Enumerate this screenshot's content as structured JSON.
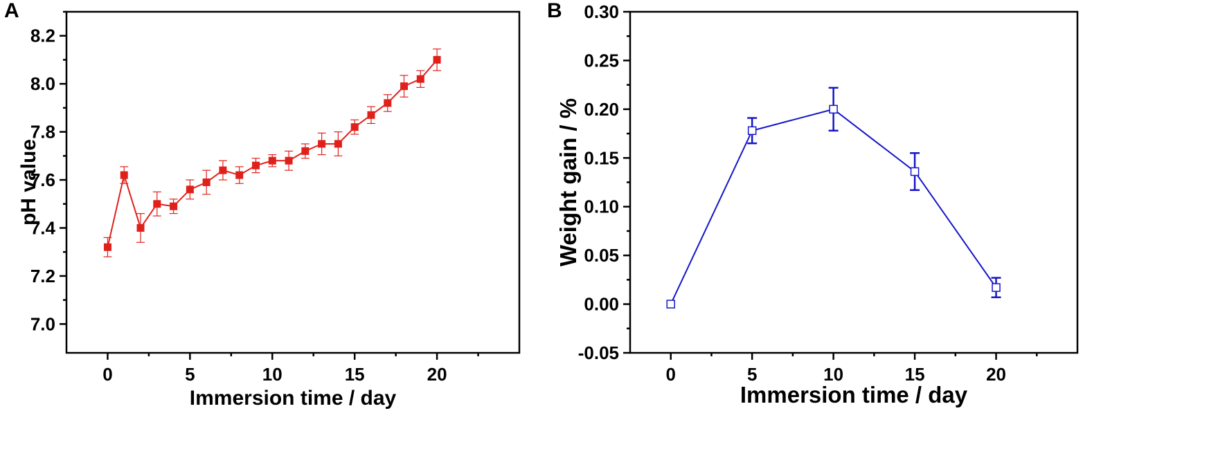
{
  "chart_data": [
    {
      "panel_label": "A",
      "type": "line",
      "marker": "filled-square",
      "color": "#e0201b",
      "xlabel": "Immersion time / day",
      "ylabel": "pH value",
      "xlim": [
        -2.5,
        25
      ],
      "ylim": [
        6.88,
        8.3
      ],
      "xticks": [
        0,
        5,
        10,
        15,
        20
      ],
      "yticks": [
        7.0,
        7.2,
        7.4,
        7.6,
        7.8,
        8.0,
        8.2
      ],
      "xtick_labels": [
        "0",
        "5",
        "10",
        "15",
        "20"
      ],
      "ytick_labels": [
        "7.0",
        "7.2",
        "7.4",
        "7.6",
        "7.8",
        "8.0",
        "8.2"
      ],
      "x": [
        0,
        1,
        2,
        3,
        4,
        5,
        6,
        7,
        8,
        9,
        10,
        11,
        12,
        13,
        14,
        15,
        16,
        17,
        18,
        19,
        20
      ],
      "values": [
        7.32,
        7.62,
        7.4,
        7.5,
        7.49,
        7.56,
        7.59,
        7.64,
        7.62,
        7.66,
        7.68,
        7.68,
        7.72,
        7.75,
        7.75,
        7.82,
        7.87,
        7.92,
        7.99,
        8.02,
        8.1
      ],
      "errors": [
        0.04,
        0.035,
        0.06,
        0.05,
        0.03,
        0.04,
        0.05,
        0.04,
        0.035,
        0.03,
        0.025,
        0.04,
        0.03,
        0.045,
        0.05,
        0.03,
        0.035,
        0.035,
        0.045,
        0.035,
        0.045
      ]
    },
    {
      "panel_label": "B",
      "type": "line",
      "marker": "open-square",
      "color": "#1515c8",
      "xlabel": "Immersion time / day",
      "ylabel": "Weight gain / %",
      "xlim": [
        -2.5,
        25
      ],
      "ylim": [
        -0.05,
        0.3
      ],
      "xticks": [
        0,
        5,
        10,
        15,
        20
      ],
      "yticks": [
        -0.05,
        0.0,
        0.05,
        0.1,
        0.15,
        0.2,
        0.25,
        0.3
      ],
      "xtick_labels": [
        "0",
        "5",
        "10",
        "15",
        "20"
      ],
      "ytick_labels": [
        "-0.05",
        "0.00",
        "0.05",
        "0.10",
        "0.15",
        "0.20",
        "0.25",
        "0.30"
      ],
      "x": [
        0,
        5,
        10,
        15,
        20
      ],
      "values": [
        0.0,
        0.178,
        0.2,
        0.136,
        0.017
      ],
      "errors": [
        0.0,
        0.013,
        0.022,
        0.019,
        0.01
      ]
    }
  ]
}
